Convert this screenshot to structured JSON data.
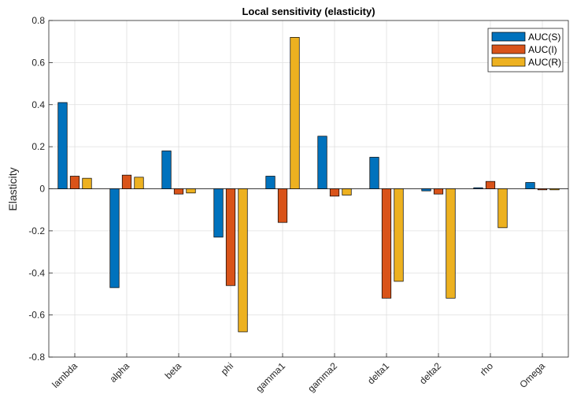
{
  "chart_data": {
    "type": "bar",
    "title": "Local sensitivity (elasticity)",
    "xlabel": "",
    "ylabel": "Elasticity",
    "categories": [
      "lambda",
      "alpha",
      "beta",
      "phi",
      "gamma1",
      "gamma2",
      "delta1",
      "delta2",
      "rho",
      "Omega"
    ],
    "series": [
      {
        "name": "AUC(S)",
        "color": "#0072BD",
        "values": [
          0.41,
          -0.47,
          0.18,
          -0.23,
          0.06,
          0.25,
          0.15,
          -0.01,
          0.005,
          0.03
        ]
      },
      {
        "name": "AUC(I)",
        "color": "#D95319",
        "values": [
          0.06,
          0.065,
          -0.025,
          -0.46,
          -0.16,
          -0.035,
          -0.52,
          -0.025,
          0.035,
          -0.005
        ]
      },
      {
        "name": "AUC(R)",
        "color": "#EDB120",
        "values": [
          0.05,
          0.055,
          -0.02,
          -0.68,
          0.72,
          -0.03,
          -0.44,
          -0.52,
          -0.185,
          -0.005
        ]
      }
    ],
    "ylim": [
      -0.8,
      0.8
    ],
    "yticks": [
      -0.8,
      -0.6,
      -0.4,
      -0.2,
      0,
      0.2,
      0.4,
      0.6,
      0.8
    ],
    "ytick_labels": [
      "-0.8",
      "-0.6",
      "-0.4",
      "-0.2",
      "0",
      "0.2",
      "0.4",
      "0.6",
      "0.8"
    ],
    "grid": true,
    "legend_position": "top-right"
  }
}
